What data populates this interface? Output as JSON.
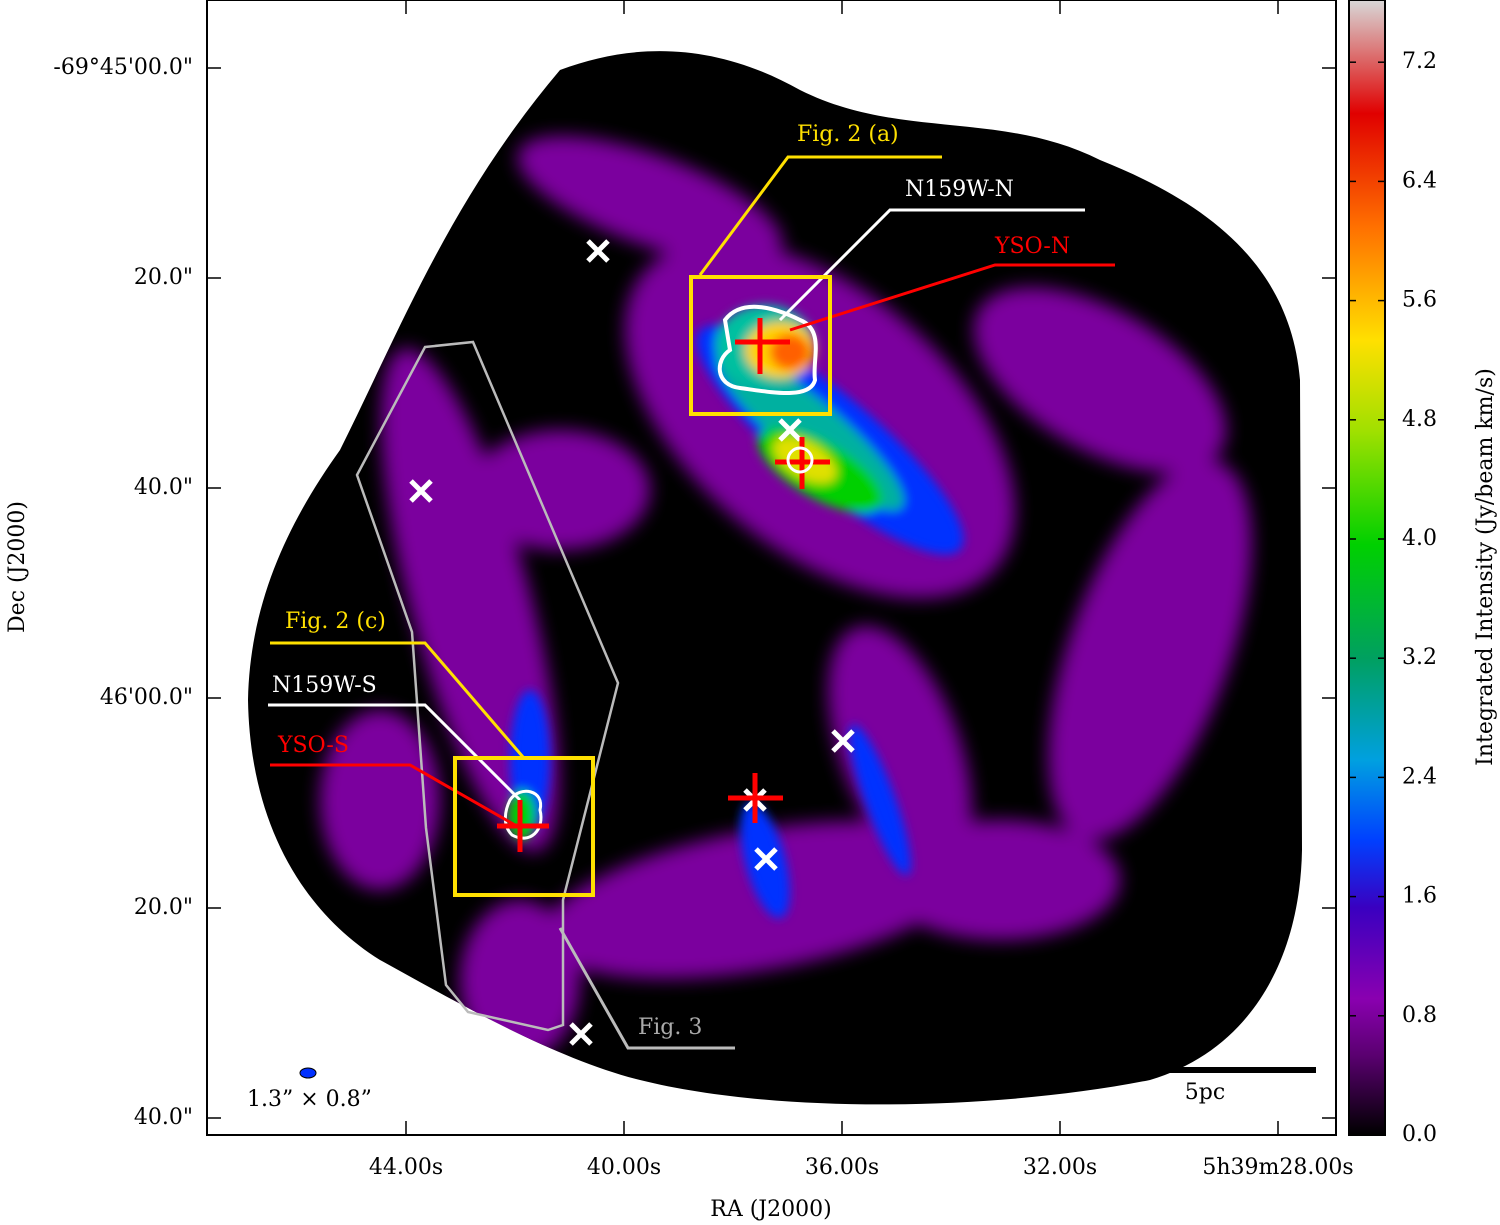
{
  "axes": {
    "x_label": "RA (J2000)",
    "y_label": "Dec (J2000)",
    "x_ticks": [
      "44.00s",
      "40.00s",
      "36.00s",
      "32.00s",
      "5h39m28.00s"
    ],
    "y_ticks": [
      "-69°45'00.0\"",
      "20.0\"",
      "40.0\"",
      "46'00.0\"",
      "20.0\"",
      "40.0\""
    ]
  },
  "colorbar": {
    "label": "Integrated Intensity (Jy/beam km/s)",
    "ticks": [
      "0.0",
      "0.8",
      "1.6",
      "2.4",
      "3.2",
      "4.0",
      "4.8",
      "5.6",
      "6.4",
      "7.2"
    ]
  },
  "annotations": {
    "fig2a": "Fig. 2 (a)",
    "n159w_n": "N159W-N",
    "yso_n": "YSO-N",
    "fig2c": "Fig. 2 (c)",
    "n159w_s": "N159W-S",
    "yso_s": "YSO-S",
    "fig3": "Fig. 3",
    "scale_bar": "5pc",
    "beam": "1.3” × 0.8”"
  }
}
